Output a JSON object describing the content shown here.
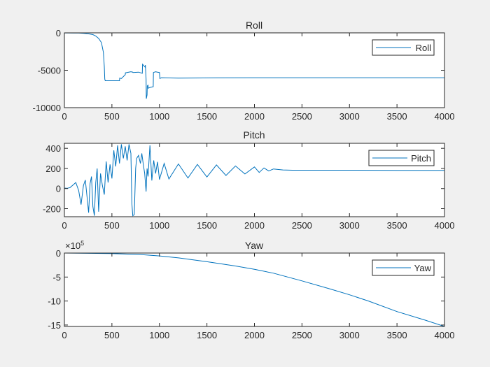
{
  "figure": {
    "background": "#f0f0f0"
  },
  "chart_data": [
    {
      "type": "line",
      "title": "Roll",
      "xlabel": "",
      "ylabel": "",
      "xlim": [
        0,
        4000
      ],
      "ylim": [
        -10000,
        0
      ],
      "xticks": [
        0,
        500,
        1000,
        1500,
        2000,
        2500,
        3000,
        3500,
        4000
      ],
      "yticks": [
        0,
        -5000,
        -10000
      ],
      "grid": false,
      "legend": "top-right",
      "line_color": "#0072bd",
      "series": [
        {
          "name": "Roll",
          "x": [
            0,
            100,
            150,
            200,
            250,
            300,
            330,
            360,
            390,
            410,
            420,
            425,
            430,
            580,
            582,
            600,
            640,
            642,
            700,
            720,
            722,
            780,
            820,
            822,
            850,
            852,
            860,
            862,
            870,
            872,
            880,
            882,
            900,
            935,
            937,
            960,
            980,
            1000,
            1005,
            1020,
            1200,
            1600,
            2000,
            2500,
            3000,
            3500,
            4000
          ],
          "y": [
            -5,
            -15,
            -30,
            -60,
            -120,
            -230,
            -420,
            -750,
            -1300,
            -2600,
            -4500,
            -6200,
            -6400,
            -6400,
            -6050,
            -6100,
            -5600,
            -5350,
            -5200,
            -5250,
            -5300,
            -5250,
            -5400,
            -4200,
            -4600,
            -4300,
            -6200,
            -8800,
            -8300,
            -7100,
            -7000,
            -7400,
            -7300,
            -7200,
            -5300,
            -5200,
            -5250,
            -5300,
            -6100,
            -6000,
            -6050,
            -6020,
            -6000,
            -6010,
            -6005,
            -6005,
            -6000
          ]
        }
      ]
    },
    {
      "type": "line",
      "title": "Pitch",
      "xlabel": "",
      "ylabel": "",
      "xlim": [
        0,
        4000
      ],
      "ylim": [
        -280,
        450
      ],
      "xticks": [
        0,
        500,
        1000,
        1500,
        2000,
        2500,
        3000,
        3500,
        4000
      ],
      "yticks": [
        400,
        200,
        0,
        -200
      ],
      "grid": false,
      "legend": "top-right",
      "line_color": "#0072bd",
      "series": [
        {
          "name": "Pitch",
          "x": [
            0,
            30,
            60,
            90,
            120,
            150,
            175,
            200,
            220,
            240,
            255,
            270,
            285,
            300,
            315,
            330,
            345,
            360,
            380,
            400,
            420,
            440,
            460,
            480,
            500,
            520,
            540,
            560,
            580,
            600,
            620,
            640,
            660,
            680,
            700,
            710,
            720,
            735,
            740,
            750,
            760,
            780,
            800,
            815,
            830,
            845,
            860,
            870,
            880,
            900,
            920,
            940,
            960,
            980,
            1000,
            1050,
            1100,
            1200,
            1300,
            1400,
            1500,
            1600,
            1700,
            1800,
            1900,
            2000,
            2050,
            2100,
            2150,
            2200,
            2300,
            2400,
            2500,
            3000,
            3500,
            4000
          ],
          "y": [
            5,
            2,
            10,
            35,
            60,
            -20,
            -160,
            30,
            85,
            -100,
            -240,
            50,
            120,
            -180,
            -270,
            60,
            200,
            -230,
            150,
            30,
            -60,
            270,
            60,
            240,
            100,
            380,
            220,
            430,
            250,
            440,
            300,
            420,
            280,
            440,
            350,
            -150,
            -270,
            -260,
            -100,
            200,
            300,
            330,
            250,
            350,
            240,
            150,
            -30,
            200,
            120,
            430,
            80,
            280,
            150,
            265,
            90,
            250,
            95,
            245,
            105,
            240,
            115,
            235,
            130,
            225,
            145,
            215,
            160,
            205,
            175,
            195,
            185,
            182,
            182,
            182,
            181,
            181
          ]
        }
      ]
    },
    {
      "type": "line",
      "title": "Yaw",
      "xlabel": "",
      "ylabel": "",
      "exponent_label": "×10",
      "exponent": "5",
      "xlim": [
        0,
        4000
      ],
      "ylim": [
        -15.3,
        0
      ],
      "xticks": [
        0,
        500,
        1000,
        1500,
        2000,
        2500,
        3000,
        3500,
        4000
      ],
      "yticks": [
        0,
        -5,
        -10,
        -15
      ],
      "grid": false,
      "legend": "top-right",
      "line_color": "#0072bd",
      "series": [
        {
          "name": "Yaw",
          "x": [
            0,
            500,
            800,
            1000,
            1200,
            1500,
            1800,
            2000,
            2200,
            2500,
            2800,
            3000,
            3200,
            3500,
            3800,
            4000
          ],
          "y": [
            0,
            -0.1,
            -0.3,
            -0.6,
            -1.0,
            -1.8,
            -2.7,
            -3.4,
            -4.2,
            -5.8,
            -7.5,
            -8.7,
            -10.0,
            -12.2,
            -14.0,
            -15.3
          ]
        }
      ]
    }
  ]
}
